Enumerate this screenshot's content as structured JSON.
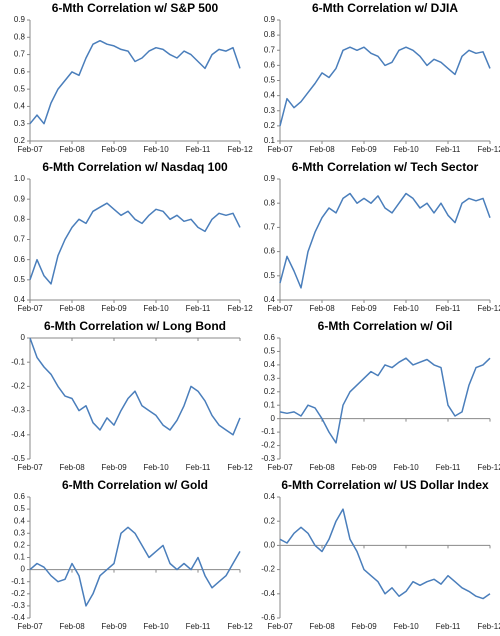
{
  "chart_data": [
    {
      "type": "line",
      "title": "6-Mth Correlation w/ S&P 500",
      "color": "#4a7ebb",
      "categories": [
        "Feb-07",
        null,
        null,
        null,
        null,
        null,
        "Feb-08",
        null,
        null,
        null,
        null,
        null,
        "Feb-09",
        null,
        null,
        null,
        null,
        null,
        "Feb-10",
        null,
        null,
        null,
        null,
        null,
        "Feb-11",
        null,
        null,
        null,
        null,
        null,
        "Feb-12"
      ],
      "values": [
        0.3,
        0.35,
        0.3,
        0.42,
        0.5,
        0.55,
        0.6,
        0.58,
        0.68,
        0.76,
        0.78,
        0.76,
        0.75,
        0.73,
        0.72,
        0.66,
        0.68,
        0.72,
        0.74,
        0.73,
        0.7,
        0.68,
        0.72,
        0.7,
        0.66,
        0.62,
        0.7,
        0.73,
        0.72,
        0.74,
        0.62
      ],
      "ylim": [
        0.2,
        0.9
      ],
      "yticks": [
        0.2,
        0.3,
        0.4,
        0.5,
        0.6,
        0.7,
        0.8,
        0.9
      ]
    },
    {
      "type": "line",
      "title": "6-Mth Correlation w/ DJIA",
      "color": "#4a7ebb",
      "categories": [
        "Feb-07",
        null,
        null,
        null,
        null,
        null,
        "Feb-08",
        null,
        null,
        null,
        null,
        null,
        "Feb-09",
        null,
        null,
        null,
        null,
        null,
        "Feb-10",
        null,
        null,
        null,
        null,
        null,
        "Feb-11",
        null,
        null,
        null,
        null,
        null,
        "Feb-12"
      ],
      "values": [
        0.2,
        0.38,
        0.32,
        0.36,
        0.42,
        0.48,
        0.55,
        0.52,
        0.58,
        0.7,
        0.72,
        0.7,
        0.72,
        0.68,
        0.66,
        0.6,
        0.62,
        0.7,
        0.72,
        0.7,
        0.66,
        0.6,
        0.64,
        0.62,
        0.58,
        0.54,
        0.66,
        0.7,
        0.68,
        0.69,
        0.58
      ],
      "ylim": [
        0.1,
        0.9
      ],
      "yticks": [
        0.1,
        0.2,
        0.3,
        0.4,
        0.5,
        0.6,
        0.7,
        0.8,
        0.9
      ]
    },
    {
      "type": "line",
      "title": "6-Mth Correlation w/ Nasdaq 100",
      "color": "#4a7ebb",
      "categories": [
        "Feb-07",
        null,
        null,
        null,
        null,
        null,
        "Feb-08",
        null,
        null,
        null,
        null,
        null,
        "Feb-09",
        null,
        null,
        null,
        null,
        null,
        "Feb-10",
        null,
        null,
        null,
        null,
        null,
        "Feb-11",
        null,
        null,
        null,
        null,
        null,
        "Feb-12"
      ],
      "values": [
        0.5,
        0.6,
        0.52,
        0.48,
        0.62,
        0.7,
        0.76,
        0.8,
        0.78,
        0.84,
        0.86,
        0.88,
        0.85,
        0.82,
        0.84,
        0.8,
        0.78,
        0.82,
        0.85,
        0.84,
        0.8,
        0.82,
        0.79,
        0.8,
        0.76,
        0.74,
        0.8,
        0.83,
        0.82,
        0.83,
        0.76
      ],
      "ylim": [
        0.4,
        1
      ],
      "yticks": [
        0.4,
        0.5,
        0.6,
        0.7,
        0.8,
        0.9,
        {
          "value": 1,
          "label": "1.0"
        }
      ]
    },
    {
      "type": "line",
      "title": "6-Mth Correlation w/ Tech Sector",
      "color": "#4a7ebb",
      "categories": [
        "Feb-07",
        null,
        null,
        null,
        null,
        null,
        "Feb-08",
        null,
        null,
        null,
        null,
        null,
        "Feb-09",
        null,
        null,
        null,
        null,
        null,
        "Feb-10",
        null,
        null,
        null,
        null,
        null,
        "Feb-11",
        null,
        null,
        null,
        null,
        null,
        "Feb-12"
      ],
      "values": [
        0.47,
        0.58,
        0.52,
        0.45,
        0.6,
        0.68,
        0.74,
        0.78,
        0.76,
        0.82,
        0.84,
        0.8,
        0.82,
        0.8,
        0.83,
        0.78,
        0.76,
        0.8,
        0.84,
        0.82,
        0.78,
        0.8,
        0.76,
        0.8,
        0.75,
        0.72,
        0.8,
        0.82,
        0.81,
        0.82,
        0.74
      ],
      "ylim": [
        0.4,
        0.9
      ],
      "yticks": [
        0.4,
        0.5,
        0.6,
        0.7,
        0.8,
        0.9
      ]
    },
    {
      "type": "line",
      "title": "6-Mth Correlation w/ Long Bond",
      "color": "#4a7ebb",
      "categories": [
        "Feb-07",
        null,
        null,
        null,
        null,
        null,
        "Feb-08",
        null,
        null,
        null,
        null,
        null,
        "Feb-09",
        null,
        null,
        null,
        null,
        null,
        "Feb-10",
        null,
        null,
        null,
        null,
        null,
        "Feb-11",
        null,
        null,
        null,
        null,
        null,
        "Feb-12"
      ],
      "values": [
        0.0,
        -0.08,
        -0.12,
        -0.15,
        -0.2,
        -0.24,
        -0.25,
        -0.3,
        -0.28,
        -0.35,
        -0.38,
        -0.33,
        -0.36,
        -0.3,
        -0.25,
        -0.22,
        -0.28,
        -0.3,
        -0.32,
        -0.36,
        -0.38,
        -0.34,
        -0.28,
        -0.2,
        -0.22,
        -0.26,
        -0.32,
        -0.36,
        -0.38,
        -0.4,
        -0.33
      ],
      "ylim": [
        -0.5,
        0
      ],
      "yticks": [
        -0.5,
        -0.4,
        -0.3,
        -0.2,
        -0.1,
        0
      ]
    },
    {
      "type": "line",
      "title": "6-Mth Correlation w/ Oil",
      "color": "#4a7ebb",
      "categories": [
        "Feb-07",
        null,
        null,
        null,
        null,
        null,
        "Feb-08",
        null,
        null,
        null,
        null,
        null,
        "Feb-09",
        null,
        null,
        null,
        null,
        null,
        "Feb-10",
        null,
        null,
        null,
        null,
        null,
        "Feb-11",
        null,
        null,
        null,
        null,
        null,
        "Feb-12"
      ],
      "values": [
        0.05,
        0.04,
        0.05,
        0.02,
        0.1,
        0.08,
        0.0,
        -0.1,
        -0.18,
        0.1,
        0.2,
        0.25,
        0.3,
        0.35,
        0.32,
        0.4,
        0.38,
        0.42,
        0.45,
        0.4,
        0.42,
        0.44,
        0.4,
        0.38,
        0.1,
        0.02,
        0.05,
        0.25,
        0.38,
        0.4,
        0.45
      ],
      "ylim": [
        -0.3,
        0.6
      ],
      "yticks": [
        -0.3,
        -0.2,
        -0.1,
        0,
        0.1,
        0.2,
        0.3,
        0.4,
        0.5,
        0.6
      ]
    },
    {
      "type": "line",
      "title": "6-Mth Correlation w/ Gold",
      "color": "#4a7ebb",
      "categories": [
        "Feb-07",
        null,
        null,
        null,
        null,
        null,
        "Feb-08",
        null,
        null,
        null,
        null,
        null,
        "Feb-09",
        null,
        null,
        null,
        null,
        null,
        "Feb-10",
        null,
        null,
        null,
        null,
        null,
        "Feb-11",
        null,
        null,
        null,
        null,
        null,
        "Feb-12"
      ],
      "values": [
        0.0,
        0.05,
        0.02,
        -0.05,
        -0.1,
        -0.08,
        0.05,
        -0.05,
        -0.3,
        -0.2,
        -0.05,
        0.0,
        0.05,
        0.3,
        0.35,
        0.3,
        0.2,
        0.1,
        0.15,
        0.2,
        0.05,
        0.0,
        0.05,
        0.0,
        0.1,
        -0.05,
        -0.15,
        -0.1,
        -0.05,
        0.05,
        0.15
      ],
      "ylim": [
        -0.4,
        0.6
      ],
      "yticks": [
        -0.4,
        -0.3,
        -0.2,
        -0.1,
        0,
        0.1,
        0.2,
        0.3,
        0.4,
        0.5,
        0.6
      ]
    },
    {
      "type": "line",
      "title": "6-Mth Correlation w/ US Dollar Index",
      "color": "#4a7ebb",
      "categories": [
        "Feb-07",
        null,
        null,
        null,
        null,
        null,
        "Feb-08",
        null,
        null,
        null,
        null,
        null,
        "Feb-09",
        null,
        null,
        null,
        null,
        null,
        "Feb-10",
        null,
        null,
        null,
        null,
        null,
        "Feb-11",
        null,
        null,
        null,
        null,
        null,
        "Feb-12"
      ],
      "values": [
        0.05,
        0.02,
        0.1,
        0.15,
        0.1,
        0.0,
        -0.05,
        0.05,
        0.2,
        0.3,
        0.05,
        -0.05,
        -0.2,
        -0.25,
        -0.3,
        -0.4,
        -0.35,
        -0.42,
        -0.38,
        -0.3,
        -0.33,
        -0.3,
        -0.28,
        -0.32,
        -0.25,
        -0.3,
        -0.35,
        -0.38,
        -0.42,
        -0.44,
        -0.4
      ],
      "ylim": [
        -0.6,
        0.4
      ],
      "yticks": [
        -0.6,
        -0.4,
        -0.2,
        {
          "value": 0,
          "label": "0.0"
        },
        0.2,
        0.4
      ]
    }
  ]
}
